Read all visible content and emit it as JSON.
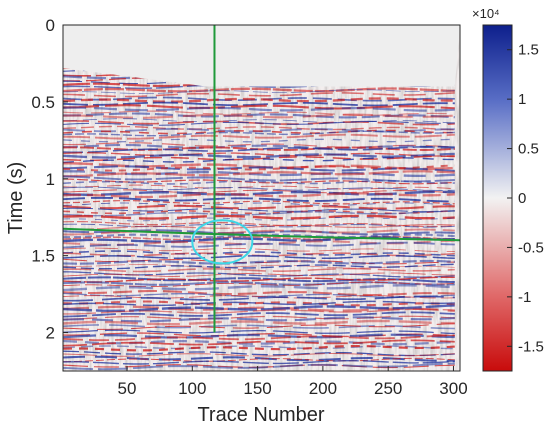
{
  "chart_data": {
    "type": "heatmap",
    "title": "",
    "xlabel": "Trace Number",
    "ylabel": "Time (s)",
    "xlim": [
      1,
      305
    ],
    "ylim": [
      0,
      2.25
    ],
    "y_reversed": true,
    "x_ticks": [
      50,
      100,
      150,
      200,
      250,
      300
    ],
    "y_ticks": [
      0,
      0.5,
      1,
      1.5,
      2
    ],
    "x_tick_labels": [
      "50",
      "100",
      "150",
      "200",
      "250",
      "300"
    ],
    "y_tick_labels": [
      "0",
      "0.5",
      "1",
      "1.5",
      "2"
    ],
    "colorbar": {
      "clim": [
        -17500,
        17500
      ],
      "ticks": [
        15000,
        10000,
        5000,
        0,
        -5000,
        -10000,
        -15000
      ],
      "tick_labels": [
        "1.5",
        "1",
        "0.5",
        "0",
        "-0.5",
        "-1",
        "-1.5"
      ],
      "exponent_label": "×10⁴",
      "colors": {
        "positive": "#1a2fa0",
        "zero": "#f2f2f2",
        "negative": "#d11a1a"
      }
    },
    "grid": false,
    "overlays": {
      "horizon_line": {
        "color": "#1f9a3a",
        "points": [
          {
            "x": 1,
            "y": 1.325
          },
          {
            "x": 100,
            "y": 1.355
          },
          {
            "x": 200,
            "y": 1.38
          },
          {
            "x": 305,
            "y": 1.4
          }
        ]
      },
      "vertical_line": {
        "color": "#1f9a3a",
        "x": 117,
        "y_range": [
          0,
          2.0
        ]
      },
      "ellipse": {
        "color": "#3cd6e6",
        "center_x": 123,
        "center_y": 1.41,
        "radius_x": 23,
        "radius_y": 0.14
      }
    }
  }
}
